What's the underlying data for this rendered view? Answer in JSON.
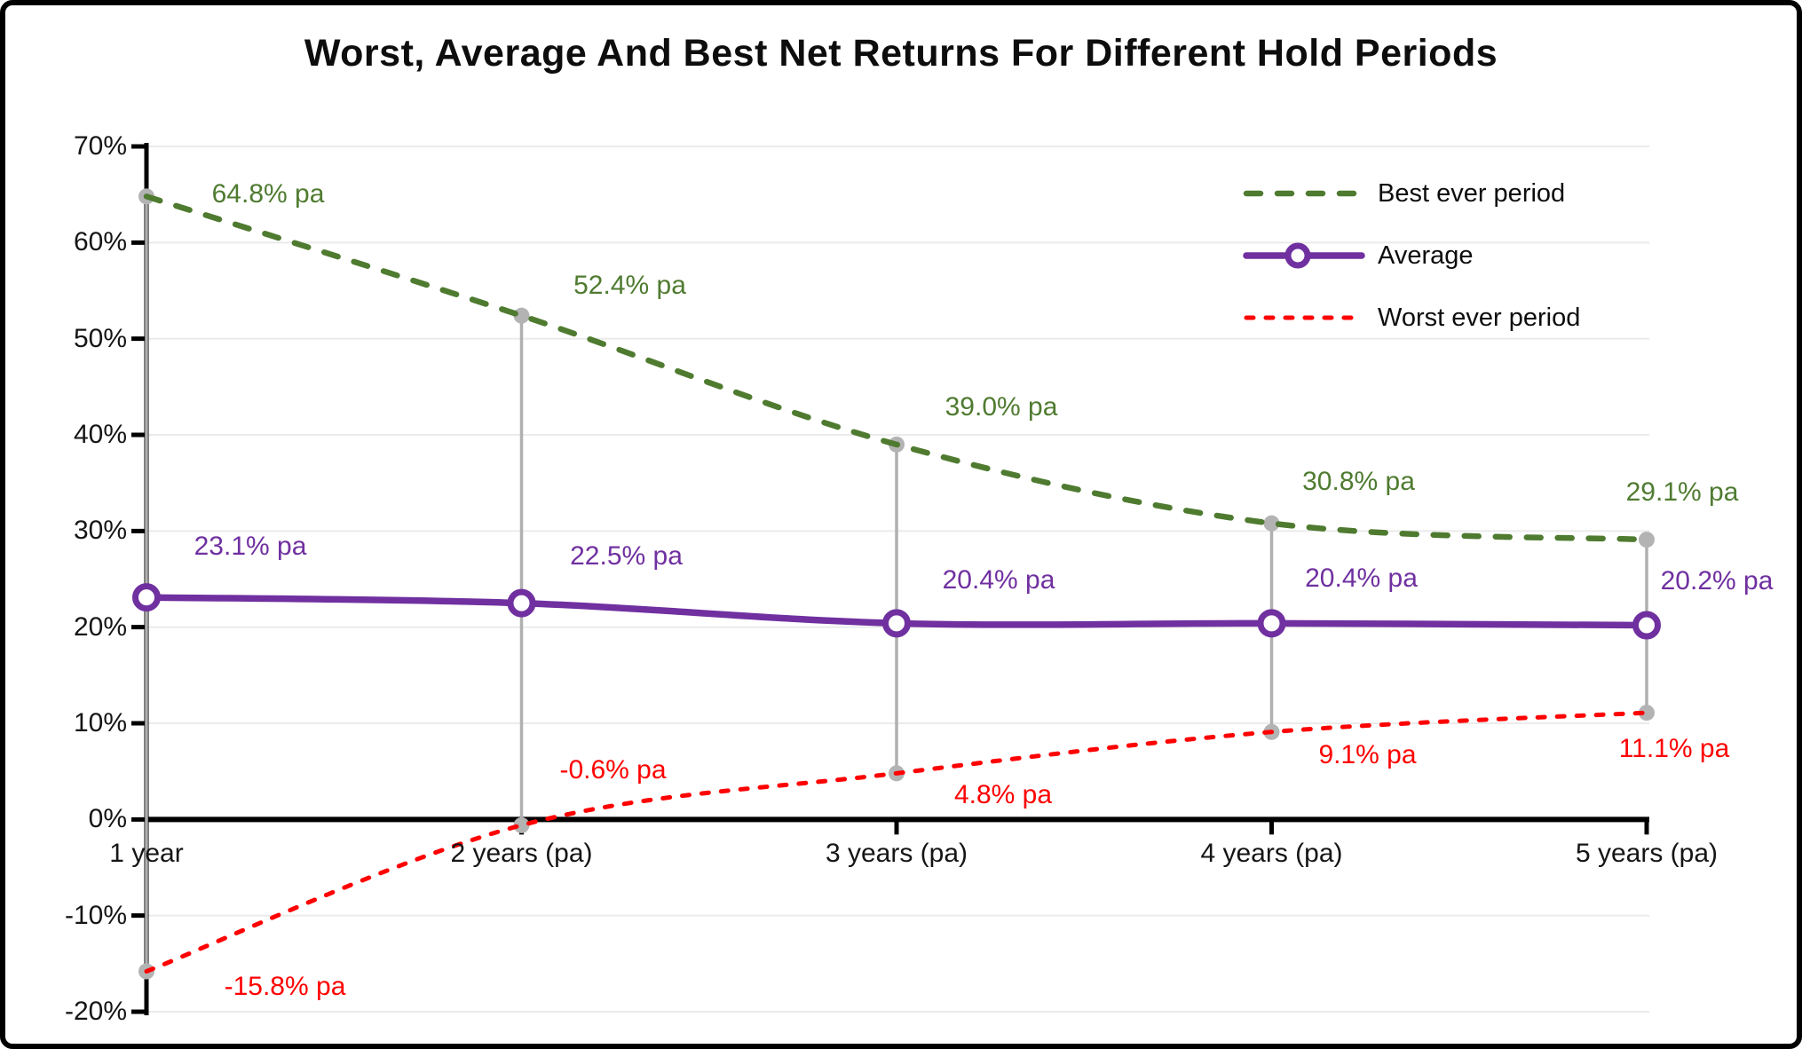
{
  "window": {
    "background": "#ffffff",
    "border_color": "#000000"
  },
  "chart_data": {
    "type": "line",
    "title": "Worst, Average And Best Net Returns For Different Hold Periods",
    "categories": [
      "1 year",
      "2 years (pa)",
      "3 years (pa)",
      "4 years (pa)",
      "5 years (pa)"
    ],
    "y_ticks": [
      "70%",
      "60%",
      "50%",
      "40%",
      "30%",
      "20%",
      "10%",
      "0%",
      "-10%",
      "-20%"
    ],
    "y_tick_values": [
      70,
      60,
      50,
      40,
      30,
      20,
      10,
      0,
      -10,
      -20
    ],
    "ylim": [
      -20,
      70
    ],
    "grid": "horizontal-on",
    "legend_position": "top-right",
    "gridline_color": "#ebebeb",
    "axis_color": "#000000",
    "connector_color": "#b0b0b0",
    "connector_dot_color": "#b3b3b3",
    "series": [
      {
        "name": "Best ever period",
        "color": "#4f7b30",
        "line_style": "dashed",
        "marker": "none",
        "values": [
          64.8,
          52.4,
          39.0,
          30.8,
          29.1
        ],
        "point_labels": [
          "64.8% pa",
          "52.4% pa",
          "39.0% pa",
          "30.8% pa",
          "29.1% pa"
        ]
      },
      {
        "name": "Average",
        "color": "#7030a0",
        "line_style": "solid",
        "marker": "open-circle",
        "values": [
          23.1,
          22.5,
          20.4,
          20.4,
          20.2
        ],
        "point_labels": [
          "23.1% pa",
          "22.5% pa",
          "20.4% pa",
          "20.4% pa",
          "20.2% pa"
        ]
      },
      {
        "name": "Worst ever period",
        "color": "#fe0000",
        "line_style": "short-dashed",
        "marker": "none",
        "values": [
          -15.8,
          -0.6,
          4.8,
          9.1,
          11.1
        ],
        "point_labels": [
          "-15.8% pa",
          "-0.6% pa",
          "4.8% pa",
          "9.1% pa",
          "11.1% pa"
        ]
      }
    ]
  }
}
